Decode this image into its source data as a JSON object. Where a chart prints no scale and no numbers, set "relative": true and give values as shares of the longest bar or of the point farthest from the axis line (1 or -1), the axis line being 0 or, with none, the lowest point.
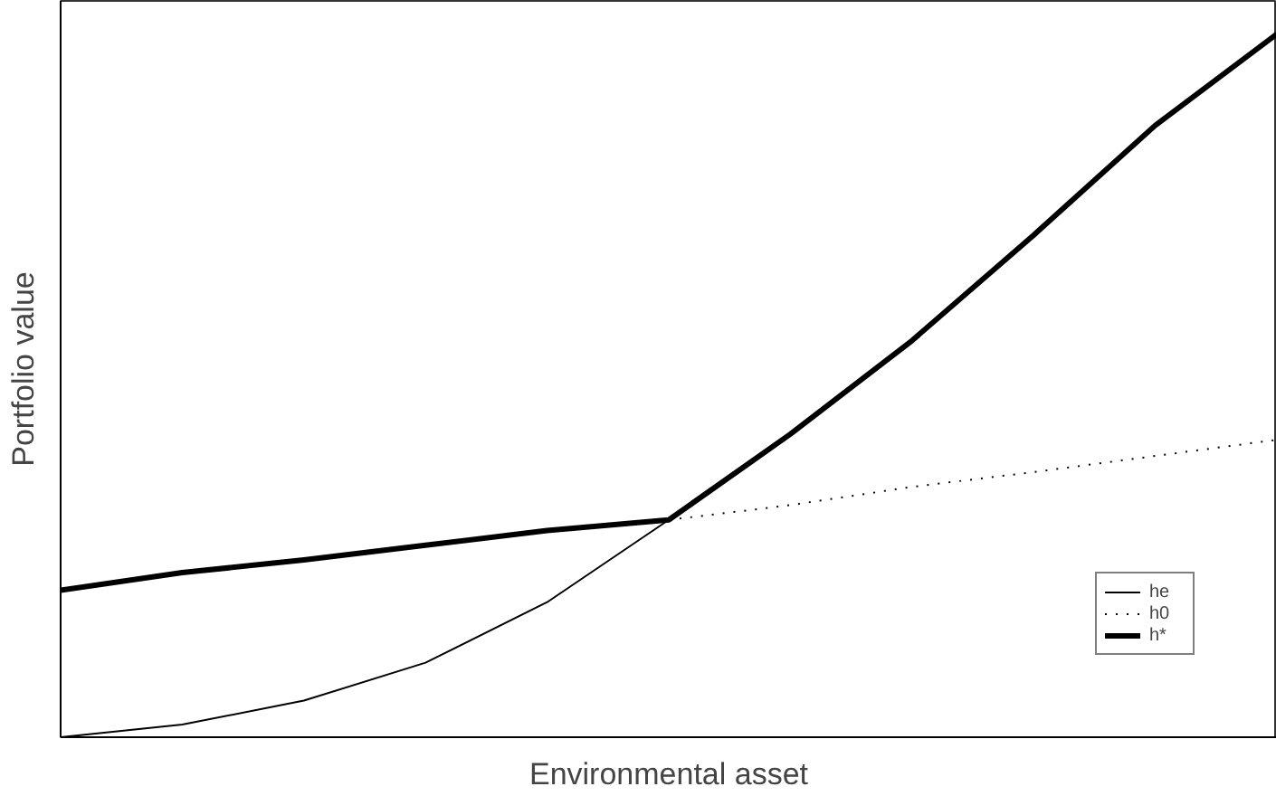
{
  "chart_data": {
    "type": "line",
    "xlabel": "Environmental asset",
    "ylabel": "Portfolio value",
    "relative": true,
    "categories": [
      null,
      null,
      null,
      null,
      null,
      null,
      null,
      null,
      null,
      null,
      null
    ],
    "legend": "bottom right",
    "grid": false,
    "marker": "none",
    "series": [
      {
        "name": "he",
        "color": "#000000",
        "line_style": "solid",
        "values": [
          0,
          0.018,
          0.052,
          0.106,
          0.192,
          0.309,
          null,
          null,
          null,
          null,
          null
        ]
      },
      {
        "name": "h0",
        "color": "#000000",
        "line_style": "dotted",
        "values": [
          null,
          null,
          null,
          null,
          null,
          0.309,
          0.33,
          0.356,
          0.377,
          0.4,
          0.423
        ]
      },
      {
        "name": "h*",
        "color": "#000000",
        "line_style": "solid",
        "values": [
          0.209,
          0.234,
          0.252,
          0.273,
          0.294,
          0.309,
          0.431,
          0.564,
          0.714,
          0.87,
          1
        ]
      }
    ]
  }
}
